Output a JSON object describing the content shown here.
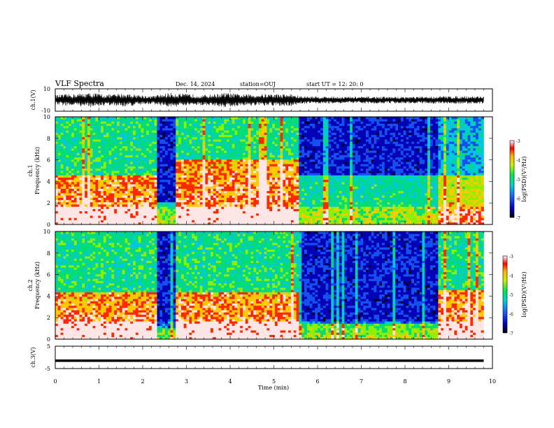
{
  "header": {
    "title": "VLF Spectra",
    "date": "Dec. 14, 2024",
    "station": "station=OUJ",
    "start": "start UT =  12: 20: 0"
  },
  "chart_data": [
    {
      "type": "line",
      "panel": "waveform-ch1",
      "ylabel": "ch.1(V)",
      "ylim": [
        -10,
        10
      ],
      "yticks": [
        "10",
        "-10"
      ],
      "xlim": [
        0,
        10
      ],
      "x_range": [
        0,
        9.8
      ],
      "amplitude_envelope": [
        {
          "x": 0.0,
          "amp": 4.5
        },
        {
          "x": 0.4,
          "amp": 5.5
        },
        {
          "x": 0.8,
          "amp": 6.5
        },
        {
          "x": 1.2,
          "amp": 5.0
        },
        {
          "x": 1.6,
          "amp": 6.0
        },
        {
          "x": 2.0,
          "amp": 4.5
        },
        {
          "x": 2.2,
          "amp": 3.5
        },
        {
          "x": 2.6,
          "amp": 6.5
        },
        {
          "x": 3.0,
          "amp": 5.5
        },
        {
          "x": 3.4,
          "amp": 4.5
        },
        {
          "x": 3.9,
          "amp": 6.5
        },
        {
          "x": 4.3,
          "amp": 5.0
        },
        {
          "x": 4.8,
          "amp": 5.5
        },
        {
          "x": 5.4,
          "amp": 5.5
        },
        {
          "x": 5.6,
          "amp": 3.5
        },
        {
          "x": 6.5,
          "amp": 3.0
        },
        {
          "x": 7.5,
          "amp": 3.0
        },
        {
          "x": 8.5,
          "amp": 3.0
        },
        {
          "x": 8.8,
          "amp": 3.5
        },
        {
          "x": 9.8,
          "amp": 3.5
        }
      ]
    },
    {
      "type": "heatmap",
      "panel": "spectrogram-ch1",
      "ylabel": "ch.1\nFrequency (kHz)",
      "ylim": [
        0,
        10
      ],
      "yticks": [
        "0",
        "2",
        "4",
        "6",
        "8",
        "10"
      ],
      "xlim": [
        0,
        10
      ],
      "x_range": [
        0,
        9.8
      ],
      "color_scale": {
        "label": "log(PSD)(V²/Hz)",
        "min": -7,
        "max": -3,
        "ticks": [
          "-3",
          "-4",
          "-5",
          "-6",
          "-7"
        ]
      },
      "segments": [
        {
          "t0": 0.0,
          "t1": 2.3,
          "level": "high",
          "band_top_khz": 4.5
        },
        {
          "t0": 2.3,
          "t1": 2.75,
          "level": "low",
          "band_top_khz": 2.0
        },
        {
          "t0": 2.75,
          "t1": 5.6,
          "level": "high",
          "band_top_khz": 6.0
        },
        {
          "t0": 5.6,
          "t1": 8.75,
          "level": "low",
          "band_top_khz": 4.5
        },
        {
          "t0": 8.75,
          "t1": 9.8,
          "level": "mid",
          "band_top_khz": 4.5
        }
      ]
    },
    {
      "type": "heatmap",
      "panel": "spectrogram-ch2",
      "ylabel": "ch.2\nFrequency (kHz)",
      "ylim": [
        0,
        10
      ],
      "yticks": [
        "0",
        "2",
        "4",
        "6",
        "8",
        "10"
      ],
      "xlim": [
        0,
        10
      ],
      "x_range": [
        0,
        9.8
      ],
      "color_scale": {
        "label": "log(PSD)(V²/Hz)",
        "min": -7,
        "max": -3,
        "ticks": [
          "-3",
          "-4",
          "-5",
          "-6",
          "-7"
        ]
      },
      "segments": [
        {
          "t0": 0.0,
          "t1": 2.3,
          "level": "high",
          "band_top_khz": 4.3
        },
        {
          "t0": 2.3,
          "t1": 2.75,
          "level": "low",
          "band_top_khz": 1.0
        },
        {
          "t0": 2.75,
          "t1": 5.6,
          "level": "high",
          "band_top_khz": 4.3
        },
        {
          "t0": 5.6,
          "t1": 8.75,
          "level": "low",
          "band_top_khz": 1.5
        },
        {
          "t0": 8.75,
          "t1": 9.8,
          "level": "high",
          "band_top_khz": 4.5
        }
      ]
    },
    {
      "type": "line",
      "panel": "waveform-ch3",
      "ylabel": "ch.3(V)",
      "ylim": [
        -5,
        5
      ],
      "yticks": [
        "5",
        "-5"
      ],
      "xlim": [
        0,
        10
      ],
      "x_range": [
        0,
        9.8
      ],
      "value": -1.5,
      "xlabel": "Time  (min)",
      "xticks": [
        "0",
        "1",
        "2",
        "3",
        "4",
        "5",
        "6",
        "7",
        "8",
        "9",
        "10"
      ]
    }
  ]
}
